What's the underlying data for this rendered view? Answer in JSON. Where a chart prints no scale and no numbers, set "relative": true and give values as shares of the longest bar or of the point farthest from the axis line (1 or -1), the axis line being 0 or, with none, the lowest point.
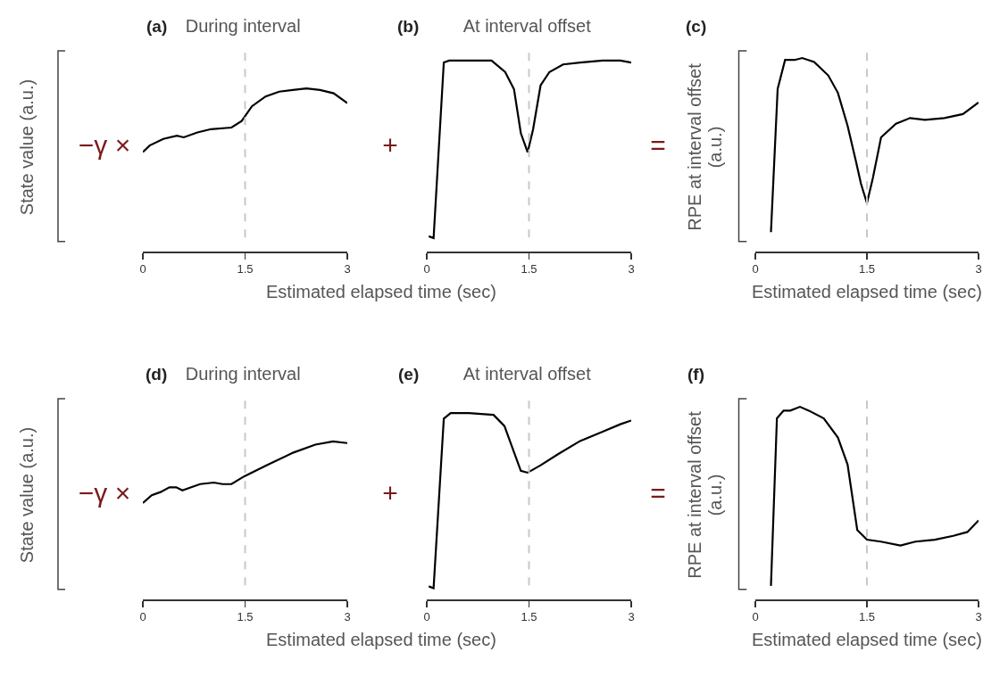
{
  "chart_data": [
    {
      "type": "line",
      "title": "During interval",
      "ylabel": "State value (a.u.)",
      "annotations": [
        "(a)",
        "−γ ×"
      ],
      "relative": true,
      "xlim": [
        0,
        3
      ],
      "xticks": [
        0,
        1.5,
        3
      ],
      "tick_labels": "x",
      "color": "#000000",
      "x": [
        0,
        0.1,
        0.3,
        0.5,
        0.6,
        0.8,
        1.0,
        1.3,
        1.45,
        1.6,
        1.8,
        2.0,
        2.2,
        2.4,
        2.6,
        2.8,
        3.0
      ],
      "values": [
        0.61,
        0.65,
        0.69,
        0.71,
        0.7,
        0.73,
        0.75,
        0.76,
        0.8,
        0.89,
        0.95,
        0.98,
        0.99,
        1,
        0.99,
        0.97,
        0.91
      ],
      "ref_lines": [
        {
          "axis": "x",
          "value": 1.5,
          "color": "#c8c8c8",
          "line_style": "dashed"
        }
      ]
    },
    {
      "type": "line",
      "title": "At interval offset",
      "xlabel": "Estimated elapsed time (sec)",
      "annotations": [
        "(b)",
        "+"
      ],
      "relative": true,
      "xlim": [
        0,
        3
      ],
      "xticks": [
        0,
        1.5,
        3
      ],
      "tick_labels": "x",
      "color": "#000000",
      "x": [
        0.03,
        0.1,
        0.25,
        0.33,
        0.95,
        1.15,
        1.28,
        1.38,
        1.48,
        1.56,
        1.67,
        1.8,
        2.0,
        2.25,
        2.58,
        2.84,
        3.0
      ],
      "values": [
        0.08,
        0.07,
        0.99,
        1,
        1,
        0.94,
        0.85,
        0.62,
        0.52,
        0.64,
        0.87,
        0.94,
        0.98,
        0.99,
        1,
        1,
        0.99
      ],
      "ref_lines": [
        {
          "axis": "x",
          "value": 1.5,
          "color": "#c8c8c8",
          "line_style": "dashed"
        }
      ]
    },
    {
      "type": "line",
      "xlabel": "Estimated elapsed time (sec)",
      "ylabel": "RPE at interval offset (a.u.)",
      "annotations": [
        "(c)",
        "="
      ],
      "relative": true,
      "xlim": [
        0,
        3
      ],
      "xticks": [
        0,
        1.5,
        3
      ],
      "tick_labels": "x",
      "color": "#000000",
      "x": [
        0.21,
        0.3,
        0.4,
        0.53,
        0.63,
        0.79,
        0.98,
        1.11,
        1.24,
        1.35,
        1.42,
        1.5,
        1.58,
        1.69,
        1.89,
        2.08,
        2.28,
        2.54,
        2.79,
        3.0
      ],
      "values": [
        0.1,
        0.84,
        0.99,
        0.99,
        1,
        0.98,
        0.91,
        0.82,
        0.65,
        0.47,
        0.35,
        0.25,
        0.38,
        0.59,
        0.66,
        0.69,
        0.68,
        0.69,
        0.71,
        0.77
      ],
      "ref_lines": [
        {
          "axis": "x",
          "value": 1.5,
          "color": "#c8c8c8",
          "line_style": "dashed"
        }
      ]
    },
    {
      "type": "line",
      "title": "During interval",
      "ylabel": "State value (a.u.)",
      "annotations": [
        "(d)",
        "−γ ×"
      ],
      "relative": true,
      "xlim": [
        0,
        3
      ],
      "xticks": [
        0,
        1.5,
        3
      ],
      "tick_labels": "x",
      "color": "#000000",
      "x": [
        0,
        0.13,
        0.26,
        0.39,
        0.49,
        0.58,
        0.71,
        0.84,
        1.04,
        1.17,
        1.3,
        1.49,
        1.82,
        2.21,
        2.53,
        2.79,
        3.0
      ],
      "values": [
        0.61,
        0.66,
        0.68,
        0.71,
        0.71,
        0.69,
        0.71,
        0.73,
        0.74,
        0.73,
        0.73,
        0.78,
        0.85,
        0.93,
        0.98,
        1,
        0.99
      ],
      "ref_lines": [
        {
          "axis": "x",
          "value": 1.5,
          "color": "#c8c8c8",
          "line_style": "dashed"
        }
      ]
    },
    {
      "type": "line",
      "title": "At interval offset",
      "xlabel": "Estimated elapsed time (sec)",
      "annotations": [
        "(e)",
        "+"
      ],
      "relative": true,
      "xlim": [
        0,
        3
      ],
      "xticks": [
        0,
        1.5,
        3
      ],
      "tick_labels": "x",
      "color": "#000000",
      "x": [
        0.03,
        0.1,
        0.25,
        0.35,
        0.62,
        0.98,
        1.14,
        1.27,
        1.38,
        1.48,
        1.67,
        1.93,
        2.25,
        2.58,
        2.84,
        3.0
      ],
      "values": [
        0.07,
        0.06,
        0.97,
        1,
        1,
        0.99,
        0.93,
        0.8,
        0.69,
        0.68,
        0.72,
        0.78,
        0.85,
        0.9,
        0.94,
        0.96
      ],
      "ref_lines": [
        {
          "axis": "x",
          "value": 1.5,
          "color": "#c8c8c8",
          "line_style": "dashed"
        }
      ]
    },
    {
      "type": "line",
      "xlabel": "Estimated elapsed time (sec)",
      "ylabel": "RPE at interval offset (a.u.)",
      "annotations": [
        "(f)",
        "="
      ],
      "relative": true,
      "xlim": [
        0,
        3
      ],
      "xticks": [
        0,
        1.5,
        3
      ],
      "tick_labels": "x",
      "color": "#000000",
      "x": [
        0.21,
        0.29,
        0.38,
        0.47,
        0.6,
        0.72,
        0.92,
        1.11,
        1.24,
        1.37,
        1.5,
        1.69,
        1.95,
        2.15,
        2.41,
        2.66,
        2.85,
        3.0
      ],
      "values": [
        0.07,
        0.94,
        0.98,
        0.98,
        1,
        0.98,
        0.94,
        0.84,
        0.7,
        0.36,
        0.31,
        0.3,
        0.28,
        0.3,
        0.31,
        0.33,
        0.35,
        0.41
      ],
      "ref_lines": [
        {
          "axis": "x",
          "value": 1.5,
          "color": "#c8c8c8",
          "line_style": "dashed"
        }
      ]
    }
  ]
}
